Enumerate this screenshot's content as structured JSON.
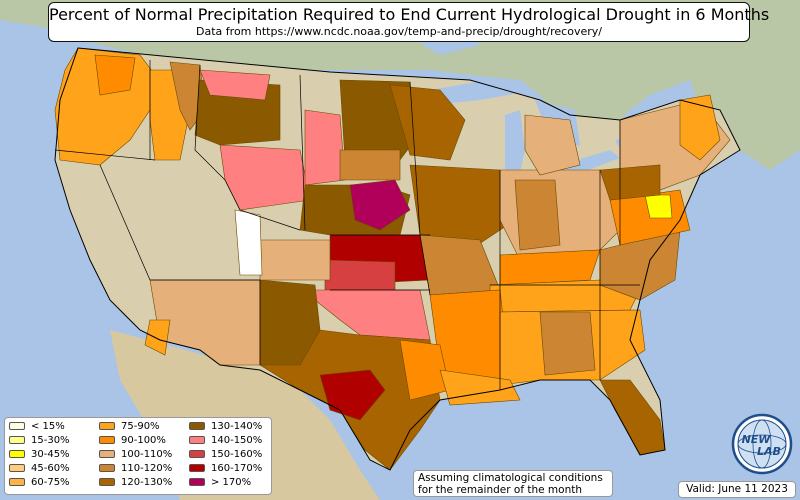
{
  "title": "Percent of Normal Precipitation Required to End Current Hydrological Drought in 6 Months",
  "subtitle": "Data from https://www.ncdc.noaa.gov/temp-and-precip/drought/recovery/",
  "legend": [
    {
      "label": "< 15%",
      "color": "#fffde0"
    },
    {
      "label": "15-30%",
      "color": "#ffff8c"
    },
    {
      "label": "30-45%",
      "color": "#ffff00"
    },
    {
      "label": "45-60%",
      "color": "#ffcc80"
    },
    {
      "label": "60-75%",
      "color": "#ffb347"
    },
    {
      "label": "75-90%",
      "color": "#ffa31a"
    },
    {
      "label": "90-100%",
      "color": "#ff8c00"
    },
    {
      "label": "100-110%",
      "color": "#e6b07a"
    },
    {
      "label": "110-120%",
      "color": "#cc8533"
    },
    {
      "label": "120-130%",
      "color": "#a86400"
    },
    {
      "label": "130-140%",
      "color": "#8b5a00"
    },
    {
      "label": "140-150%",
      "color": "#ff8080"
    },
    {
      "label": "150-160%",
      "color": "#d64040"
    },
    {
      "label": "160-170%",
      "color": "#b00000"
    },
    {
      "label": "> 170%",
      "color": "#b0005a"
    }
  ],
  "note_line1": "Assuming climatological conditions",
  "note_line2": "for the remainder of the month",
  "valid": "Valid: June 11 2023",
  "logo_text_top": "NEW",
  "logo_text_bottom": "LAB"
}
